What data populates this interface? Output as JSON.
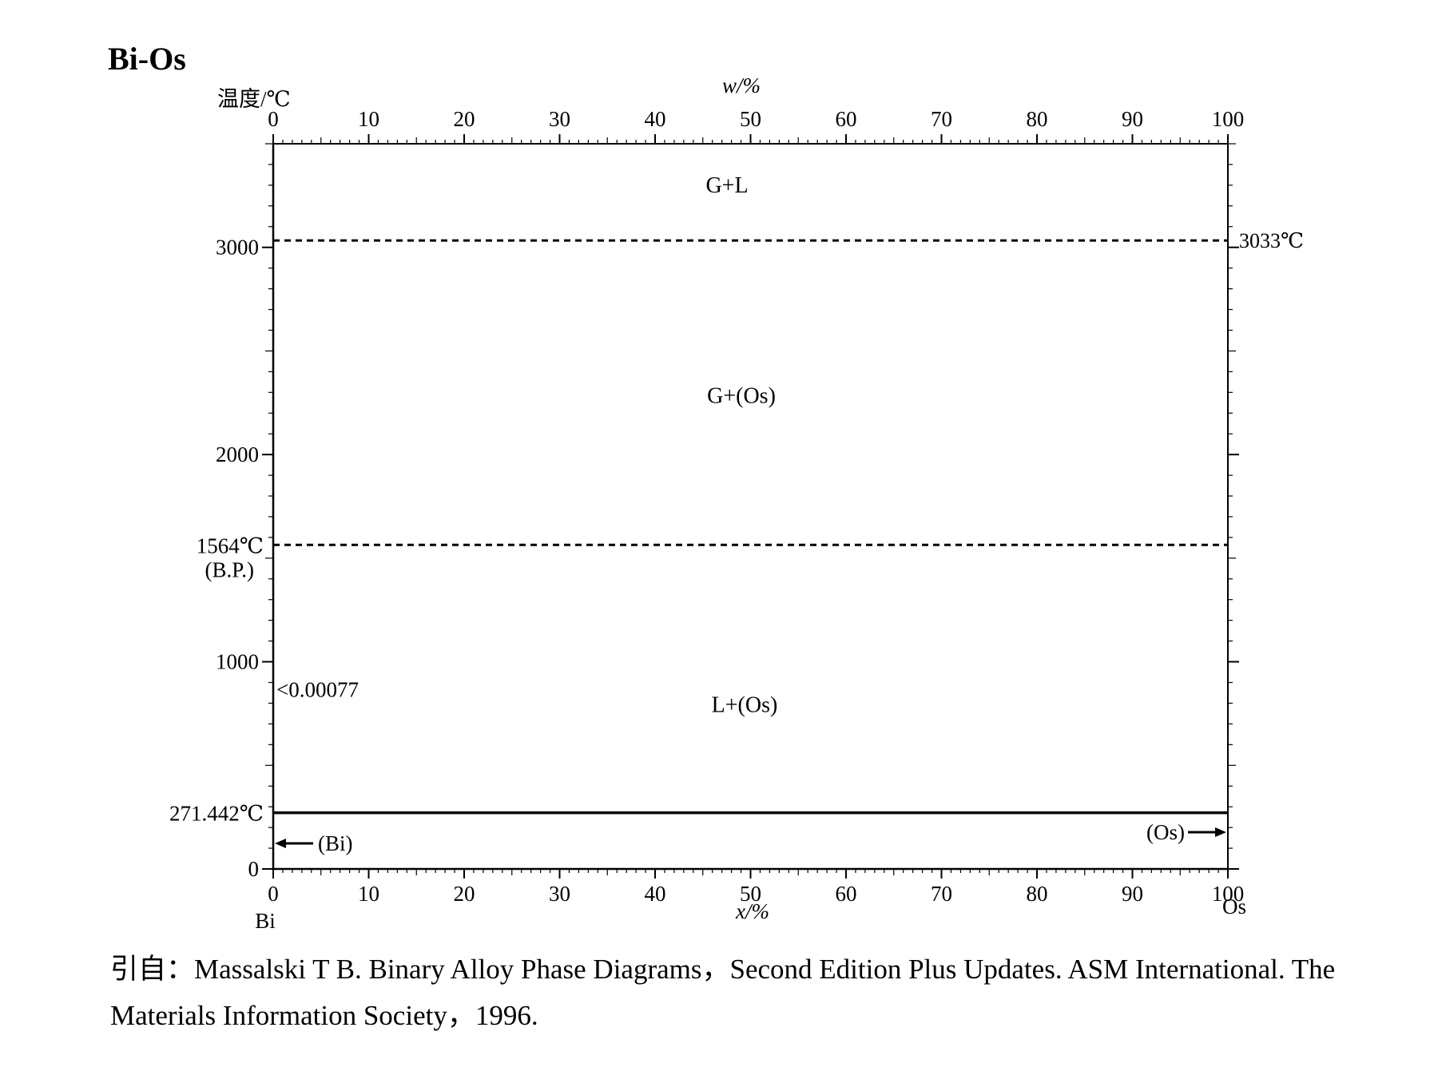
{
  "title": "Bi-Os",
  "chart_data": {
    "type": "phase_diagram",
    "system": "Bi-Os",
    "ylabel": "温度/℃",
    "top_axis": {
      "label": "w/%",
      "ticks": [
        "0",
        "10",
        "20",
        "30",
        "40",
        "50",
        "60",
        "70",
        "80",
        "90",
        "100"
      ],
      "range": [
        0,
        100
      ]
    },
    "bottom_axis": {
      "label": "x/%",
      "ticks": [
        "0",
        "10",
        "20",
        "30",
        "40",
        "50",
        "60",
        "70",
        "80",
        "90",
        "100"
      ],
      "range": [
        0,
        100
      ]
    },
    "y_axis": {
      "ticks": [
        "0",
        "1000",
        "2000",
        "3000"
      ],
      "tick_values": [
        0,
        1000,
        2000,
        3000
      ],
      "range": [
        0,
        3500
      ]
    },
    "components": {
      "left": "Bi",
      "right": "Os"
    },
    "lines": [
      {
        "name": "liquidus-gas-boundary",
        "temperature": 3033,
        "style": "dashed",
        "label": "3033℃"
      },
      {
        "name": "boiling-point",
        "temperature": 1564,
        "style": "dashed",
        "label": "1564℃",
        "sublabel": "(B.P.)"
      },
      {
        "name": "bi-melting",
        "temperature": 271.442,
        "style": "solid",
        "label": "271.442℃"
      }
    ],
    "regions": [
      {
        "label": "G+L"
      },
      {
        "label": "G+(Os)"
      },
      {
        "label": "L+(Os)"
      }
    ],
    "annotations": {
      "solubility": "<0.00077",
      "bi_phase": "(Bi)",
      "os_phase": "(Os)"
    }
  },
  "citation": {
    "prefix": "引自：",
    "text": "Massalski T B.  Binary Alloy Phase Diagrams，Second Edition Plus Updates.  ASM International. The Materials Information Society，1996."
  }
}
